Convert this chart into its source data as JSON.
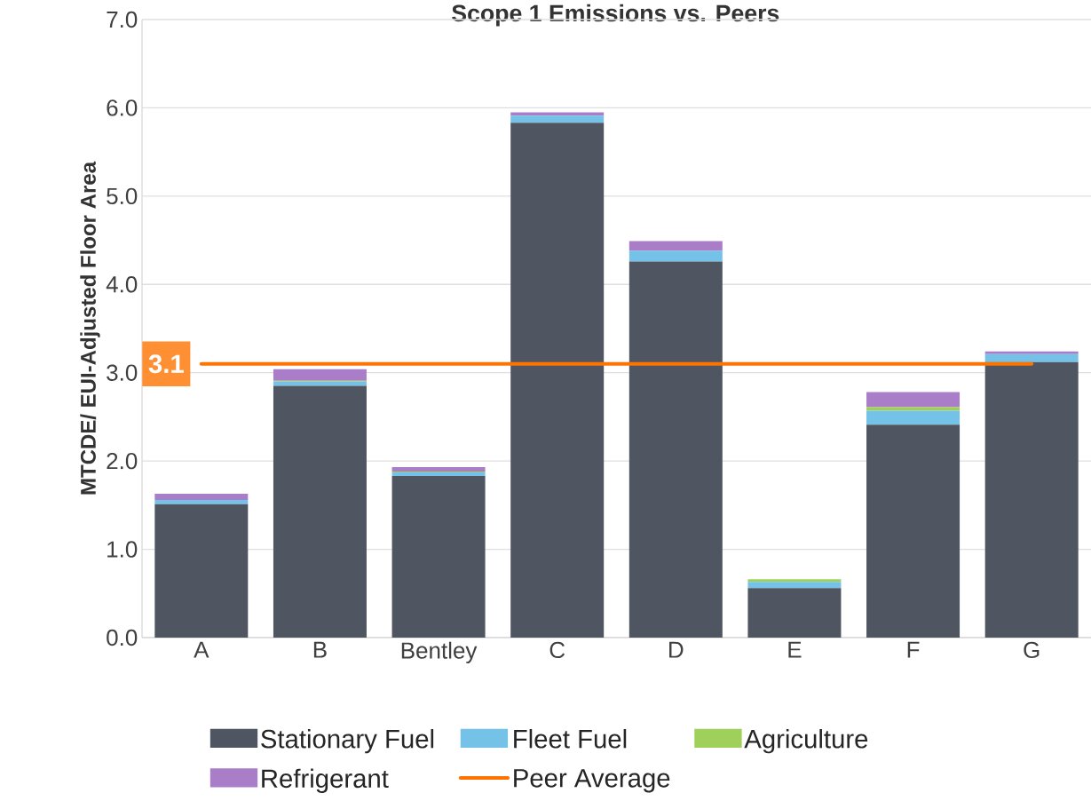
{
  "chart_data": {
    "type": "bar",
    "stacked": true,
    "title": "Scope 1 Emissions vs. Peers",
    "ylabel": "MTCDE/ EUI-Adjusted Floor Area",
    "categories": [
      "A",
      "B",
      "Bentley",
      "C",
      "D",
      "E",
      "F",
      "G"
    ],
    "series": [
      {
        "name": "Stationary Fuel",
        "color": "#4f5661",
        "values": [
          1.51,
          2.85,
          1.83,
          5.83,
          4.26,
          0.56,
          2.41,
          3.12
        ]
      },
      {
        "name": "Fleet Fuel",
        "color": "#74c2e8",
        "values": [
          0.05,
          0.05,
          0.04,
          0.08,
          0.12,
          0.07,
          0.16,
          0.09
        ]
      },
      {
        "name": "Agriculture",
        "color": "#9fd15a",
        "values": [
          0.0,
          0.01,
          0.01,
          0.0,
          0.0,
          0.03,
          0.04,
          0.0
        ]
      },
      {
        "name": "Refrigerant",
        "color": "#aa7dc9",
        "values": [
          0.07,
          0.13,
          0.05,
          0.04,
          0.11,
          0.0,
          0.17,
          0.03
        ]
      },
      {
        "name": "Peer Average",
        "type": "line",
        "color": "#ff7300",
        "values": [
          3.1,
          3.1,
          3.1,
          3.1,
          3.1,
          3.1,
          3.1,
          3.1
        ]
      }
    ],
    "annotations": [
      "3.1"
    ],
    "ylim": [
      0,
      7
    ],
    "yticks": [
      {
        "value": 0,
        "label": "0.0"
      },
      {
        "value": 1,
        "label": "1.0"
      },
      {
        "value": 2,
        "label": "2.0"
      },
      {
        "value": 3,
        "label": "3.0"
      },
      {
        "value": 4,
        "label": "4.0"
      },
      {
        "value": 5,
        "label": "5.0"
      },
      {
        "value": 6,
        "label": "6.0"
      },
      {
        "value": 7,
        "label": "7.0"
      }
    ],
    "grid": "y",
    "legend": "bottom",
    "marker": "none"
  }
}
